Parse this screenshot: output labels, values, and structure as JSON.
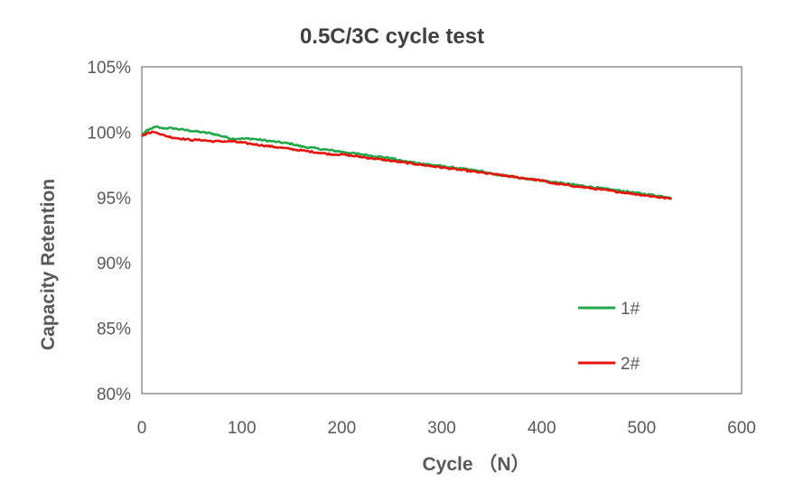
{
  "chart_data": {
    "type": "line",
    "title": "0.5C/3C cycle test",
    "xlabel": "Cycle （N）",
    "ylabel": "Capacity Retention",
    "xlim": [
      0,
      600
    ],
    "ylim": [
      80,
      105
    ],
    "x_ticks": [
      "0",
      "100",
      "200",
      "300",
      "400",
      "500",
      "600"
    ],
    "y_ticks": [
      "80%",
      "85%",
      "90%",
      "95%",
      "100%",
      "105%"
    ],
    "grid": false,
    "legend_position": "right",
    "series": [
      {
        "name": "1#",
        "color": "#22a84a",
        "x": [
          0,
          5,
          10,
          15,
          20,
          30,
          40,
          50,
          60,
          70,
          80,
          90,
          100,
          110,
          120,
          130,
          140,
          150,
          160,
          170,
          180,
          190,
          200,
          210,
          220,
          230,
          240,
          250,
          260,
          270,
          280,
          290,
          300,
          310,
          320,
          330,
          340,
          350,
          360,
          370,
          380,
          390,
          400,
          410,
          420,
          430,
          440,
          450,
          460,
          470,
          480,
          490,
          500,
          510,
          520,
          530
        ],
        "values": [
          99.8,
          100.1,
          100.3,
          100.4,
          100.3,
          100.3,
          100.2,
          100.1,
          100.0,
          99.9,
          99.7,
          99.5,
          99.5,
          99.5,
          99.4,
          99.3,
          99.2,
          99.1,
          98.9,
          98.8,
          98.7,
          98.6,
          98.5,
          98.4,
          98.3,
          98.2,
          98.1,
          98.0,
          97.8,
          97.7,
          97.6,
          97.5,
          97.4,
          97.3,
          97.2,
          97.1,
          97.0,
          96.8,
          96.7,
          96.6,
          96.5,
          96.4,
          96.3,
          96.2,
          96.1,
          96.0,
          95.9,
          95.8,
          95.7,
          95.6,
          95.5,
          95.4,
          95.3,
          95.2,
          95.1,
          95.0
        ]
      },
      {
        "name": "2#",
        "color": "#e8140c",
        "x": [
          0,
          5,
          10,
          15,
          20,
          30,
          40,
          50,
          60,
          70,
          80,
          90,
          100,
          110,
          120,
          130,
          140,
          150,
          160,
          170,
          180,
          190,
          200,
          210,
          220,
          230,
          240,
          250,
          260,
          270,
          280,
          290,
          300,
          310,
          320,
          330,
          340,
          350,
          360,
          370,
          380,
          390,
          400,
          410,
          420,
          430,
          440,
          450,
          460,
          470,
          480,
          490,
          500,
          510,
          520,
          530
        ],
        "values": [
          99.7,
          99.9,
          100.0,
          100.0,
          99.8,
          99.6,
          99.5,
          99.4,
          99.4,
          99.3,
          99.3,
          99.3,
          99.2,
          99.1,
          99.0,
          98.9,
          98.8,
          98.7,
          98.6,
          98.5,
          98.4,
          98.3,
          98.3,
          98.2,
          98.1,
          98.0,
          97.9,
          97.8,
          97.7,
          97.6,
          97.5,
          97.4,
          97.3,
          97.2,
          97.1,
          97.0,
          96.9,
          96.8,
          96.7,
          96.6,
          96.5,
          96.4,
          96.3,
          96.1,
          96.0,
          95.9,
          95.8,
          95.7,
          95.6,
          95.5,
          95.4,
          95.3,
          95.2,
          95.1,
          95.0,
          94.9
        ]
      }
    ]
  }
}
